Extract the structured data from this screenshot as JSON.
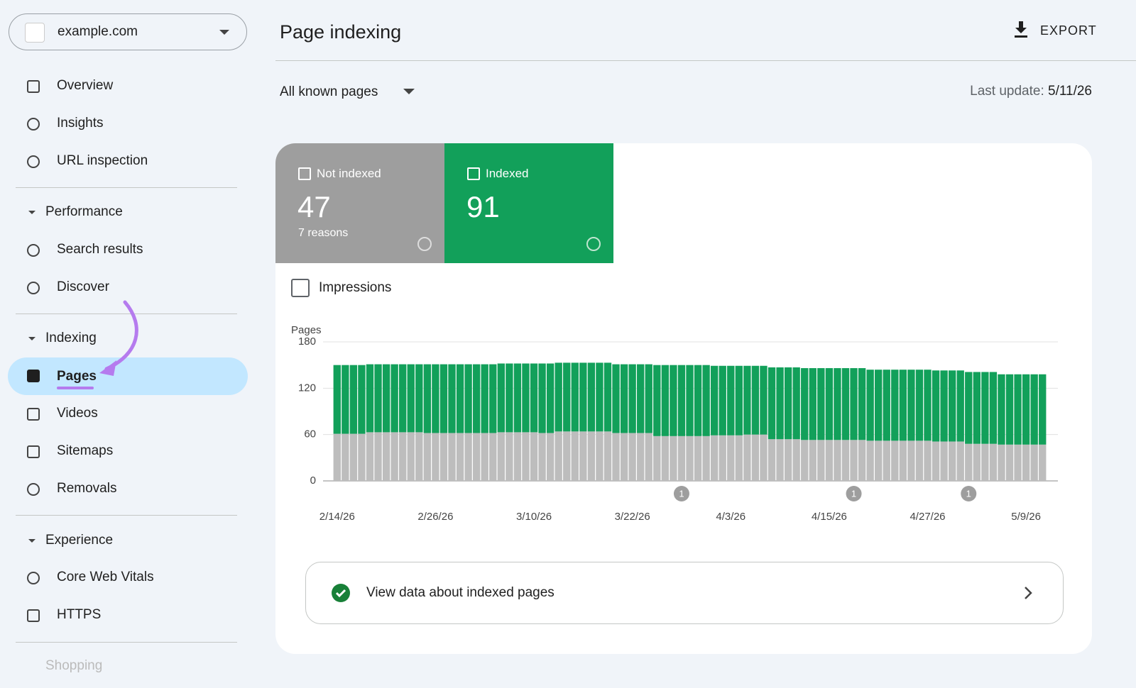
{
  "sidebar": {
    "site": "example.com",
    "top": [
      "Overview",
      "Insights",
      "URL inspection"
    ],
    "sections": [
      {
        "title": "Performance",
        "items": [
          "Search results",
          "Discover"
        ]
      },
      {
        "title": "Indexing",
        "items": [
          "Pages",
          "Videos",
          "Sitemaps",
          "Removals"
        ]
      },
      {
        "title": "Experience",
        "items": [
          "Core Web Vitals",
          "HTTPS"
        ]
      },
      {
        "title": "Shopping",
        "items": []
      }
    ]
  },
  "header": {
    "title": "Page indexing",
    "export": "EXPORT"
  },
  "filter": "All known pages",
  "last_update_label": "Last update:",
  "last_update": "5/11/26",
  "cards": [
    {
      "value": 47,
      "sub": "7 reasons"
    },
    {
      "value": 91
    }
  ],
  "impressions": "Impressions",
  "link": "View data about indexed pages",
  "chart_data": {
    "type": "bar",
    "stacked": true,
    "y_label": "Pages",
    "categories": [
      "2/14/26",
      null,
      null,
      null,
      null,
      null,
      null,
      null,
      null,
      null,
      null,
      null,
      "2/26/26",
      null,
      null,
      null,
      null,
      null,
      null,
      null,
      null,
      null,
      null,
      null,
      "3/10/26",
      null,
      null,
      null,
      null,
      null,
      null,
      null,
      null,
      null,
      null,
      null,
      "3/22/26",
      null,
      null,
      null,
      null,
      null,
      null,
      null,
      null,
      null,
      null,
      null,
      "4/3/26",
      null,
      null,
      null,
      null,
      null,
      null,
      null,
      null,
      null,
      null,
      null,
      "4/15/26",
      null,
      null,
      null,
      null,
      null,
      null,
      null,
      null,
      null,
      null,
      null,
      "4/27/26",
      null,
      null,
      null,
      null,
      null,
      null,
      null,
      null,
      null,
      null,
      null,
      "5/9/26",
      null,
      null
    ],
    "series": [
      {
        "name": "Not indexed",
        "color": "#bdbdbd",
        "card_color": "#9e9e9e",
        "values": [
          61,
          61,
          61,
          61,
          63,
          63,
          63,
          63,
          63,
          63,
          63,
          62,
          62,
          62,
          62,
          62,
          62,
          62,
          62,
          62,
          63,
          63,
          63,
          63,
          63,
          62,
          62,
          64,
          64,
          64,
          64,
          64,
          64,
          64,
          62,
          62,
          62,
          62,
          62,
          58,
          58,
          58,
          58,
          58,
          58,
          58,
          59,
          59,
          59,
          59,
          60,
          60,
          60,
          54,
          54,
          54,
          54,
          53,
          53,
          53,
          53,
          53,
          53,
          53,
          53,
          52,
          52,
          52,
          52,
          52,
          52,
          52,
          52,
          51,
          51,
          51,
          51,
          48,
          48,
          48,
          48,
          47,
          47,
          47,
          47,
          47,
          47
        ]
      },
      {
        "name": "Indexed",
        "color": "#12a05a",
        "card_color": "#12a05a",
        "values": [
          89,
          89,
          89,
          89,
          88,
          88,
          88,
          88,
          88,
          88,
          88,
          89,
          89,
          89,
          89,
          89,
          89,
          89,
          89,
          89,
          89,
          89,
          89,
          89,
          89,
          90,
          90,
          89,
          89,
          89,
          89,
          89,
          89,
          89,
          89,
          89,
          89,
          89,
          89,
          92,
          92,
          92,
          92,
          92,
          92,
          92,
          90,
          90,
          90,
          90,
          89,
          89,
          89,
          93,
          93,
          93,
          93,
          93,
          93,
          93,
          93,
          93,
          93,
          93,
          93,
          92,
          92,
          92,
          92,
          92,
          92,
          92,
          92,
          92,
          92,
          92,
          92,
          93,
          93,
          93,
          93,
          91,
          91,
          91,
          91,
          91,
          91
        ]
      }
    ],
    "annotations": [
      "1",
      "1",
      "1"
    ],
    "ylim": [
      0,
      180
    ],
    "yticks": [
      0,
      60,
      120,
      180
    ],
    "grid": true
  }
}
